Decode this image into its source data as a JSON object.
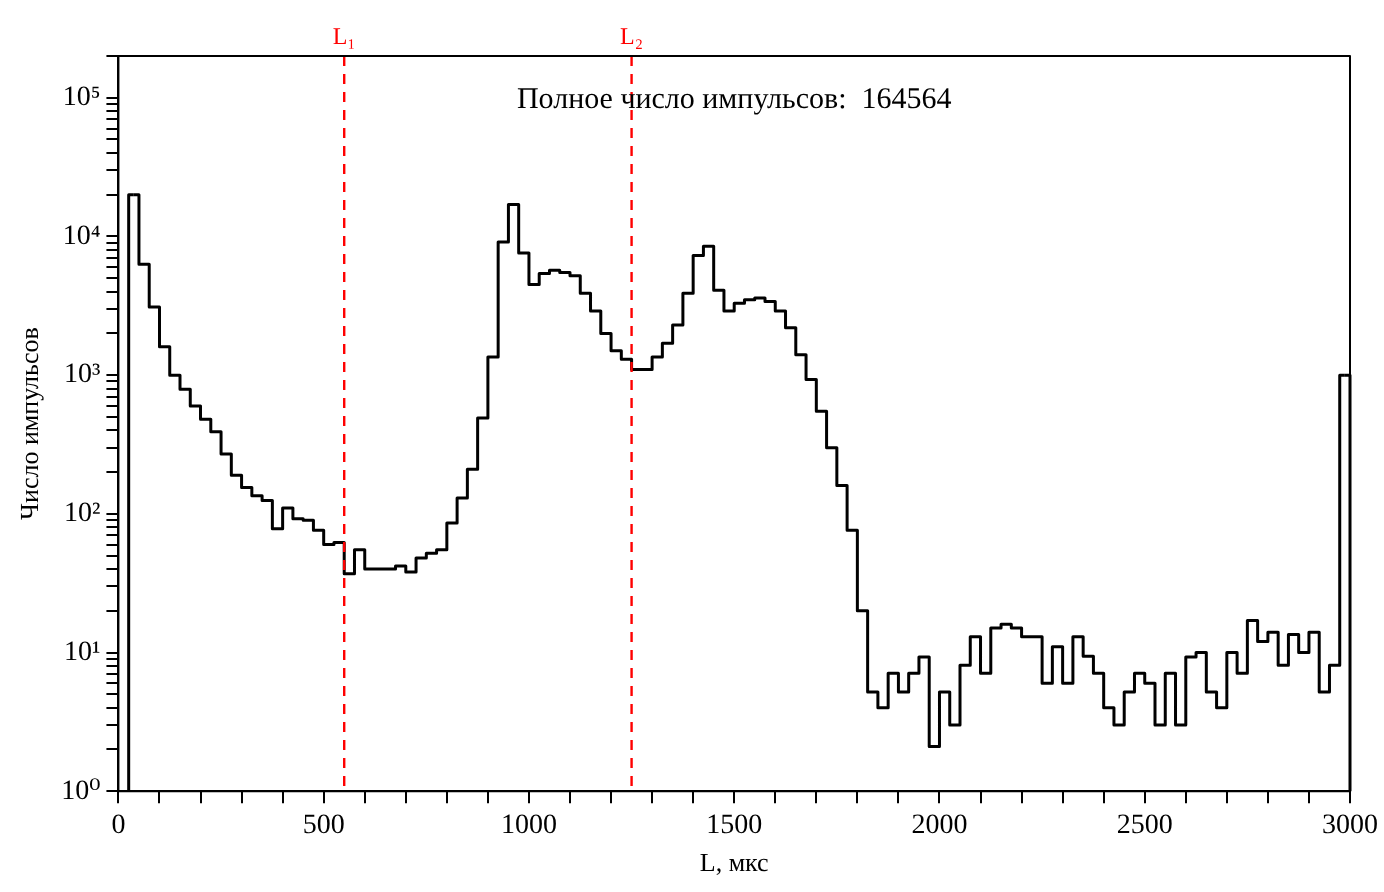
{
  "chart_data": {
    "type": "histogram",
    "xlabel": "L, мкс",
    "ylabel": "Число импульсов",
    "annotations": [
      "Полное число импульсов:  164564"
    ],
    "bins": [
      25,
      50,
      75,
      100,
      125,
      150,
      175,
      200,
      225,
      250,
      275,
      300,
      325,
      350,
      375,
      400,
      425,
      450,
      475,
      500,
      525,
      550,
      575,
      600,
      625,
      650,
      675,
      700,
      725,
      750,
      775,
      800,
      825,
      850,
      875,
      900,
      925,
      950,
      975,
      1000,
      1025,
      1050,
      1075,
      1100,
      1125,
      1150,
      1175,
      1200,
      1225,
      1250,
      1275,
      1300,
      1325,
      1350,
      1375,
      1400,
      1425,
      1450,
      1475,
      1500,
      1525,
      1550,
      1575,
      1600,
      1625,
      1650,
      1675,
      1700,
      1725,
      1750,
      1775,
      1800,
      1825,
      1850,
      1875,
      1900,
      1925,
      1950,
      1975,
      2000,
      2025,
      2050,
      2075,
      2100,
      2125,
      2150,
      2175,
      2200,
      2225,
      2250,
      2275,
      2300,
      2325,
      2350,
      2375,
      2400,
      2425,
      2450,
      2475,
      2500,
      2525,
      2550,
      2575,
      2600,
      2625,
      2650,
      2675,
      2700,
      2725,
      2750,
      2775,
      2800,
      2825,
      2850,
      2875,
      2900,
      2925,
      2950,
      2975,
      3000
    ],
    "values": [
      20000,
      6300,
      3100,
      1600,
      1000,
      790,
      600,
      480,
      390,
      270,
      190,
      155,
      135,
      125,
      78,
      110,
      92,
      90,
      76,
      60,
      62,
      37,
      55,
      40,
      40,
      40,
      42,
      38,
      48,
      52,
      55,
      86,
      130,
      210,
      490,
      1350,
      9100,
      17000,
      7600,
      4500,
      5400,
      5700,
      5500,
      5200,
      3900,
      2900,
      2000,
      1500,
      1300,
      1100,
      1100,
      1350,
      1700,
      2300,
      3900,
      7300,
      8500,
      4100,
      2900,
      3300,
      3500,
      3600,
      3400,
      2900,
      2200,
      1400,
      930,
      550,
      300,
      160,
      76,
      20,
      5.2,
      4,
      7.1,
      5.2,
      7.1,
      9.3,
      2.1,
      5.2,
      3,
      8.1,
      13,
      7.1,
      15,
      16,
      15,
      13,
      13,
      6,
      11,
      6,
      13,
      9.4,
      7.1,
      4,
      3,
      5.2,
      7.1,
      6,
      3,
      7.1,
      3,
      9.3,
      10,
      5.2,
      4,
      10,
      7.1,
      17,
      12,
      14,
      8.1,
      13.5,
      10,
      14,
      5.2,
      8.1,
      1000
    ],
    "color": "#000000",
    "log": "y",
    "grid": false,
    "legend": false,
    "xlim": [
      0,
      3000
    ],
    "xticks": [
      0,
      {
        "value": 100,
        "label": null
      },
      {
        "value": 200,
        "label": null
      },
      {
        "value": 300,
        "label": null
      },
      {
        "value": 400,
        "label": null
      },
      500,
      {
        "value": 600,
        "label": null
      },
      {
        "value": 700,
        "label": null
      },
      {
        "value": 800,
        "label": null
      },
      {
        "value": 900,
        "label": null
      },
      1000,
      {
        "value": 1100,
        "label": null
      },
      {
        "value": 1200,
        "label": null
      },
      {
        "value": 1300,
        "label": null
      },
      {
        "value": 1400,
        "label": null
      },
      1500,
      {
        "value": 1600,
        "label": null
      },
      {
        "value": 1700,
        "label": null
      },
      {
        "value": 1800,
        "label": null
      },
      {
        "value": 1900,
        "label": null
      },
      2000,
      {
        "value": 2100,
        "label": null
      },
      {
        "value": 2200,
        "label": null
      },
      {
        "value": 2300,
        "label": null
      },
      {
        "value": 2400,
        "label": null
      },
      2500,
      {
        "value": 2600,
        "label": null
      },
      {
        "value": 2700,
        "label": null
      },
      {
        "value": 2800,
        "label": null
      },
      {
        "value": 2900,
        "label": null
      },
      3000
    ],
    "ylim": [
      1,
      200000
    ],
    "yticks": [
      {
        "value": 1,
        "label": "10⁰"
      },
      {
        "value": 2,
        "label": null
      },
      {
        "value": 3,
        "label": null
      },
      {
        "value": 4,
        "label": null
      },
      {
        "value": 5,
        "label": null
      },
      {
        "value": 6,
        "label": null
      },
      {
        "value": 7,
        "label": null
      },
      {
        "value": 8,
        "label": null
      },
      {
        "value": 9,
        "label": null
      },
      {
        "value": 10,
        "label": "10¹"
      },
      {
        "value": 20,
        "label": null
      },
      {
        "value": 30,
        "label": null
      },
      {
        "value": 40,
        "label": null
      },
      {
        "value": 50,
        "label": null
      },
      {
        "value": 60,
        "label": null
      },
      {
        "value": 70,
        "label": null
      },
      {
        "value": 80,
        "label": null
      },
      {
        "value": 90,
        "label": null
      },
      {
        "value": 100,
        "label": "10²"
      },
      {
        "value": 200,
        "label": null
      },
      {
        "value": 300,
        "label": null
      },
      {
        "value": 400,
        "label": null
      },
      {
        "value": 500,
        "label": null
      },
      {
        "value": 600,
        "label": null
      },
      {
        "value": 700,
        "label": null
      },
      {
        "value": 800,
        "label": null
      },
      {
        "value": 900,
        "label": null
      },
      {
        "value": 1000,
        "label": "10³"
      },
      {
        "value": 2000,
        "label": null
      },
      {
        "value": 3000,
        "label": null
      },
      {
        "value": 4000,
        "label": null
      },
      {
        "value": 5000,
        "label": null
      },
      {
        "value": 6000,
        "label": null
      },
      {
        "value": 7000,
        "label": null
      },
      {
        "value": 8000,
        "label": null
      },
      {
        "value": 9000,
        "label": null
      },
      {
        "value": 10000,
        "label": "10⁴"
      },
      {
        "value": 20000,
        "label": null
      },
      {
        "value": 30000,
        "label": null
      },
      {
        "value": 40000,
        "label": null
      },
      {
        "value": 50000,
        "label": null
      },
      {
        "value": 60000,
        "label": null
      },
      {
        "value": 70000,
        "label": null
      },
      {
        "value": 80000,
        "label": null
      },
      {
        "value": 90000,
        "label": null
      },
      {
        "value": 100000,
        "label": "10⁵"
      },
      {
        "value": 200000,
        "label": null
      }
    ],
    "ref_lines": [
      {
        "axis": "x",
        "value": 550,
        "label": "L₁",
        "color": "#ff0000",
        "line_style": "dashed"
      },
      {
        "axis": "x",
        "value": 1250,
        "label": "L₂",
        "color": "#ff0000",
        "line_style": "dashed"
      }
    ]
  }
}
